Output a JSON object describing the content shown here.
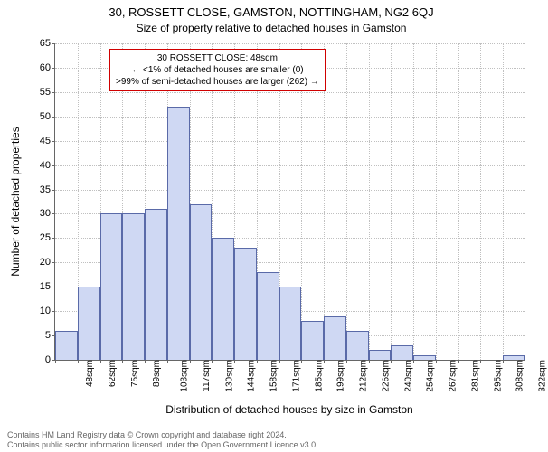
{
  "title_line1": "30, ROSSETT CLOSE, GAMSTON, NOTTINGHAM, NG2 6QJ",
  "title_line2": "Size of property relative to detached houses in Gamston",
  "chart": {
    "type": "histogram",
    "ylabel": "Number of detached properties",
    "xlabel": "Distribution of detached houses by size in Gamston",
    "ylim": [
      0,
      65
    ],
    "ytick_step": 5,
    "xtick_labels": [
      "48sqm",
      "62sqm",
      "75sqm",
      "89sqm",
      "103sqm",
      "117sqm",
      "130sqm",
      "144sqm",
      "158sqm",
      "171sqm",
      "185sqm",
      "199sqm",
      "212sqm",
      "226sqm",
      "240sqm",
      "254sqm",
      "267sqm",
      "281sqm",
      "295sqm",
      "308sqm",
      "322sqm"
    ],
    "values": [
      6,
      15,
      30,
      30,
      31,
      52,
      32,
      25,
      23,
      18,
      15,
      8,
      9,
      6,
      2,
      3,
      1,
      0,
      0,
      0,
      1
    ],
    "bar_fill": "#cfd8f3",
    "bar_stroke": "#5a6aa8",
    "grid_color": "#c0c0c0",
    "axis_color": "#666666",
    "background": "#ffffff",
    "label_fontsize": 12,
    "tick_fontsize": 11
  },
  "annotation": {
    "line1": "30 ROSSETT CLOSE: 48sqm",
    "line2": "← <1% of detached houses are smaller (0)",
    "line3": ">99% of semi-detached houses are larger (262) →",
    "border_color": "#d00000"
  },
  "footer": {
    "line1": "Contains HM Land Registry data © Crown copyright and database right 2024.",
    "line2": "Contains public sector information licensed under the Open Government Licence v3.0."
  }
}
